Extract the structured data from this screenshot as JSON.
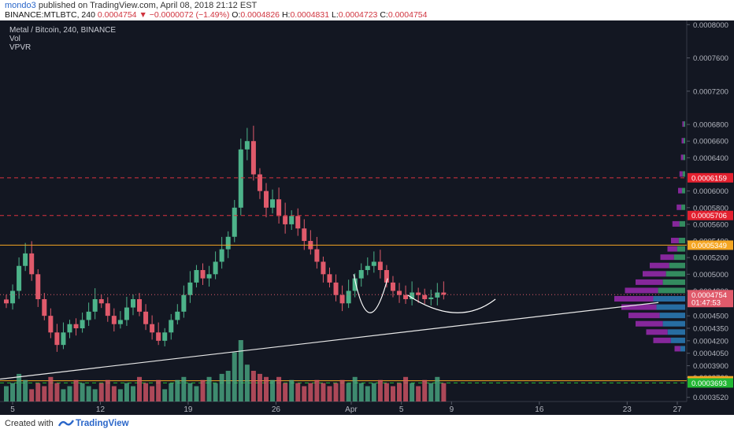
{
  "header": {
    "author": "mondo3",
    "publish_text": "published on TradingView.com, April 08, 2018 21:12 EST",
    "symbol": "BINANCE:MTLBTC, 240",
    "last": "0.0004754",
    "change": "−0.0000072 (−1.49%)",
    "o_label": "O:",
    "o_value": "0.0004826",
    "h_label": "H:",
    "h_value": "0.0004831",
    "l_label": "L:",
    "l_value": "0.0004723",
    "c_label": "C:",
    "c_value": "0.0004754"
  },
  "legend": {
    "title": "Metal / Bitcoin, 240, BINANCE",
    "vol": "Vol",
    "vpvr": "VPVR"
  },
  "footer": {
    "created": "Created with",
    "brand": "TradingView"
  },
  "colors": {
    "background": "#131722",
    "up": "#4db38a",
    "down": "#e05a6b",
    "orange": "#f5a623",
    "dashed_red": "#d9323f",
    "vpvr_up": "#3aa06a",
    "vpvr_down": "#9b2ab0",
    "vpvr_blue": "#2c7cb8"
  },
  "chart_data": {
    "type": "candlestick",
    "symbol": "BINANCE:MTLBTC",
    "interval": "240",
    "ylim": [
      0.000347,
      0.000805
    ],
    "y_ticks": [
      "0.0008000",
      "0.0007600",
      "0.0007200",
      "0.0006800",
      "0.0006600",
      "0.0006400",
      "0.0006000",
      "0.0005800",
      "0.0005600",
      "0.0005400",
      "0.0005200",
      "0.0005000",
      "0.0004800",
      "0.0004500",
      "0.0004350",
      "0.0004200",
      "0.0004050",
      "0.0003900",
      "0.0003760",
      "0.0003520"
    ],
    "x_ticks": [
      "5",
      "12",
      "19",
      "26",
      "Apr",
      "5",
      "9",
      "16",
      "23",
      "27"
    ],
    "x_ticks_index": [
      0,
      7,
      14,
      21,
      27,
      31,
      35,
      42,
      49,
      53
    ],
    "candle_day_range": [
      0,
      35
    ],
    "price_labels": [
      {
        "text": "0.0006159",
        "value": 0.0006159,
        "color": "#e4202f"
      },
      {
        "text": "0.0005706",
        "value": 0.0005706,
        "color": "#e4202f"
      },
      {
        "text": "0.0005349",
        "value": 0.0005349,
        "color": "#f5a623"
      },
      {
        "text": "0.0004754",
        "value": 0.0004754,
        "color": "#e05a6b"
      },
      {
        "text": "01:47:53",
        "value": 0.000466,
        "color": "#e05a6b"
      },
      {
        "text": "0.0003719",
        "value": 0.0003719,
        "color": "#f5a623"
      },
      {
        "text": "0.0003693",
        "value": 0.0003693,
        "color": "#22b833"
      }
    ],
    "horizontal_lines": [
      {
        "value": 0.0006159,
        "style": "dashed",
        "color": "#d9323f"
      },
      {
        "value": 0.0005706,
        "style": "dashed",
        "color": "#d9323f"
      },
      {
        "value": 0.0005349,
        "style": "solid",
        "color": "#f5a623"
      },
      {
        "value": 0.0004754,
        "style": "dotted",
        "color": "#e05a6b"
      },
      {
        "value": 0.0003719,
        "style": "solid",
        "color": "#f5a623"
      },
      {
        "value": 0.0003693,
        "style": "dashed",
        "color": "#22b833"
      }
    ],
    "trendline": {
      "from": [
        -1,
        0.000374
      ],
      "to": [
        51.5,
        0.000466
      ]
    },
    "closes": [
      0.000465,
      0.00048,
      0.00051,
      0.000525,
      0.0005,
      0.00047,
      0.00045,
      0.00043,
      0.000415,
      0.00043,
      0.00044,
      0.000435,
      0.000445,
      0.000455,
      0.00047,
      0.000465,
      0.00045,
      0.00044,
      0.000445,
      0.00046,
      0.00047,
      0.000455,
      0.00044,
      0.00043,
      0.00042,
      0.00043,
      0.000445,
      0.000455,
      0.000475,
      0.00049,
      0.000505,
      0.000495,
      0.0005,
      0.000515,
      0.00053,
      0.000545,
      0.00058,
      0.00065,
      0.00066,
      0.00062,
      0.0006,
      0.00058,
      0.00059,
      0.00057,
      0.00056,
      0.00057,
      0.000555,
      0.00054,
      0.00053,
      0.000515,
      0.0005,
      0.00049,
      0.000475,
      0.000465,
      0.00048,
      0.000495,
      0.000505,
      0.00051,
      0.000515,
      0.000505,
      0.00049,
      0.00048,
      0.000475,
      0.00047,
      0.000478,
      0.000475,
      0.00047,
      0.000472,
      0.000478,
      0.0004754
    ],
    "volume_scale": "relative 0-1",
    "volumes": [
      0.25,
      0.3,
      0.45,
      0.35,
      0.2,
      0.3,
      0.25,
      0.4,
      0.3,
      0.2,
      0.25,
      0.35,
      0.3,
      0.25,
      0.2,
      0.3,
      0.35,
      0.25,
      0.2,
      0.3,
      0.25,
      0.4,
      0.3,
      0.25,
      0.35,
      0.2,
      0.3,
      0.35,
      0.4,
      0.3,
      0.25,
      0.35,
      0.4,
      0.3,
      0.45,
      0.5,
      0.8,
      1.0,
      0.6,
      0.5,
      0.45,
      0.4,
      0.35,
      0.4,
      0.3,
      0.35,
      0.3,
      0.25,
      0.3,
      0.35,
      0.3,
      0.25,
      0.3,
      0.35,
      0.3,
      0.4,
      0.3,
      0.25,
      0.3,
      0.35,
      0.3,
      0.25,
      0.3,
      0.4,
      0.3,
      0.25,
      0.35,
      0.3,
      0.4,
      0.3
    ],
    "vpvr_scale": "relative 0-1",
    "vpvr": [
      {
        "price": 0.00041,
        "width": 0.15
      },
      {
        "price": 0.00042,
        "width": 0.45
      },
      {
        "price": 0.00043,
        "width": 0.55
      },
      {
        "price": 0.00044,
        "width": 0.7
      },
      {
        "price": 0.00045,
        "width": 0.8
      },
      {
        "price": 0.00046,
        "width": 0.9
      },
      {
        "price": 0.00047,
        "width": 1.0
      },
      {
        "price": 0.00048,
        "width": 0.85
      },
      {
        "price": 0.00049,
        "width": 0.7
      },
      {
        "price": 0.0005,
        "width": 0.6
      },
      {
        "price": 0.00051,
        "width": 0.5
      },
      {
        "price": 0.00052,
        "width": 0.35
      },
      {
        "price": 0.00053,
        "width": 0.25
      },
      {
        "price": 0.00054,
        "width": 0.2
      },
      {
        "price": 0.00056,
        "width": 0.18
      },
      {
        "price": 0.00058,
        "width": 0.12
      },
      {
        "price": 0.0006,
        "width": 0.1
      },
      {
        "price": 0.00062,
        "width": 0.08
      },
      {
        "price": 0.00064,
        "width": 0.06
      },
      {
        "price": 0.00066,
        "width": 0.05
      },
      {
        "price": 0.00068,
        "width": 0.04
      }
    ]
  }
}
